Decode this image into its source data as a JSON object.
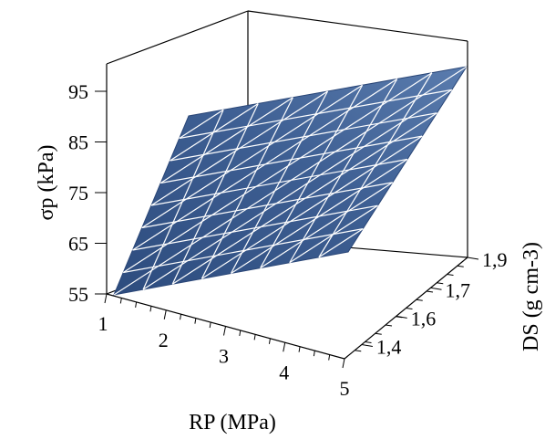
{
  "chart_data": {
    "type": "surface3d",
    "title": "",
    "xlabel": "RP (MPa)",
    "ylabel": "DS (g cm-3)",
    "zlabel": "σp (kPa)",
    "x_ticks": [
      "1",
      "2",
      "3",
      "4",
      "5"
    ],
    "y_ticks": [
      "1,4",
      "1,6",
      "1,7",
      "1,9"
    ],
    "z_ticks": [
      "55",
      "65",
      "75",
      "85",
      "95"
    ],
    "xlim": [
      1,
      5
    ],
    "ylim": [
      1.4,
      1.9
    ],
    "zlim": [
      55,
      95
    ],
    "surface": {
      "description_values": "corner values of fitted plane",
      "corners": [
        {
          "x": 1,
          "y": 1.4,
          "z": 55
        },
        {
          "x": 5,
          "y": 1.4,
          "z": 65
        },
        {
          "x": 1,
          "y": 1.9,
          "z": 88
        },
        {
          "x": 5,
          "y": 1.9,
          "z": 98
        }
      ]
    },
    "colors": {
      "surface_light": "#5779a8",
      "surface_dark": "#2d4c7e",
      "mesh": "#ffffff",
      "axes": "#000000"
    }
  }
}
